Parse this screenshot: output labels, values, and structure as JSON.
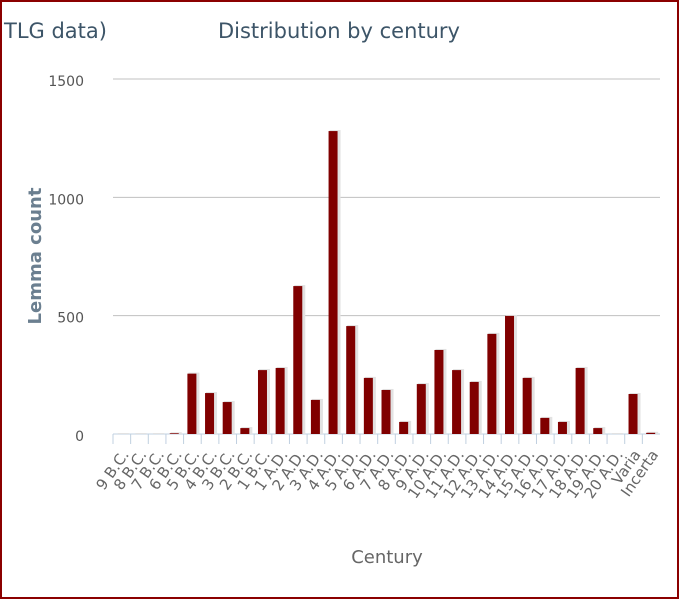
{
  "chart_data": {
    "type": "bar",
    "title": "Distribution by century",
    "clipped_title": "TLG data)",
    "x_label": "Century",
    "y_label": "Lemma count",
    "categories": [
      "9 B.C.",
      "8 B.C.",
      "7 B.C.",
      "6 B.C.",
      "5 B.C.",
      "4 B.C.",
      "3 B.C.",
      "2 B.C.",
      "1 B.C.",
      "1 A.D.",
      "2 A.D.",
      "3 A.D.",
      "4 A.D.",
      "5 A.D.",
      "6 A.D.",
      "7 A.D.",
      "8 A.D.",
      "9 A.D.",
      "10 A.D.",
      "11 A.D.",
      "12 A.D.",
      "13 A.D.",
      "14 A.D.",
      "15 A.D.",
      "16 A.D.",
      "17 A.D.",
      "18 A.D.",
      "19 A.D.",
      "20 A.D.",
      "Varia",
      "Incerta"
    ],
    "values": [
      0,
      0,
      0,
      3,
      255,
      173,
      135,
      25,
      270,
      279,
      625,
      144,
      1280,
      456,
      237,
      186,
      51,
      211,
      355,
      270,
      220,
      423,
      499,
      237,
      68,
      51,
      279,
      25,
      0,
      169,
      5
    ],
    "color": "#800000",
    "ylim": [
      0,
      1500
    ],
    "yticks": [
      0,
      500,
      1000,
      1500
    ],
    "grid": true
  }
}
